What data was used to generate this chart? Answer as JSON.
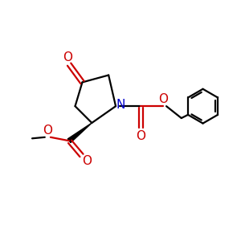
{
  "bg_color": "#ffffff",
  "bond_color": "#000000",
  "N_color": "#0000cc",
  "O_color": "#cc0000",
  "line_width": 1.6,
  "fig_size": [
    3.0,
    3.0
  ],
  "dpi": 100,
  "xlim": [
    0,
    10
  ],
  "ylim": [
    0,
    10
  ]
}
